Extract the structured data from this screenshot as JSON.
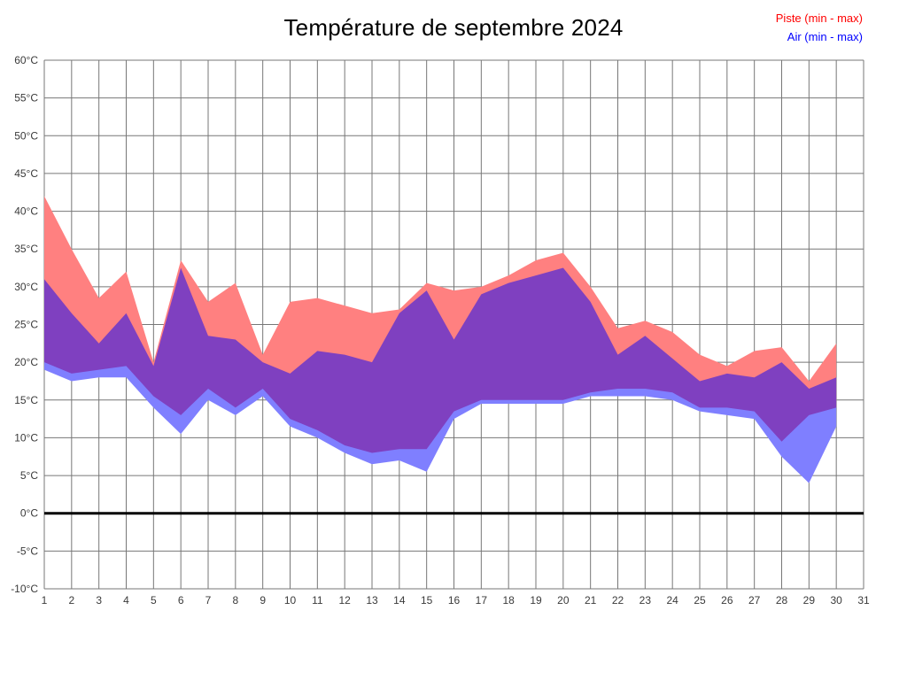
{
  "chart_data": {
    "type": "area",
    "title": "Température de septembre 2024",
    "legend": [
      {
        "label": "Piste (min - max)",
        "color": "#ff0000"
      },
      {
        "label": "Air (min - max)",
        "color": "#0000ff"
      }
    ],
    "xlabel": "",
    "ylabel": "",
    "xlim": [
      1,
      31
    ],
    "ylim": [
      -10,
      60
    ],
    "grid": true,
    "grid_color": "#777777",
    "zero_line_color": "#000000",
    "xtick_values": [
      1,
      2,
      3,
      4,
      5,
      6,
      7,
      8,
      9,
      10,
      11,
      12,
      13,
      14,
      15,
      16,
      17,
      18,
      19,
      20,
      21,
      22,
      23,
      24,
      25,
      26,
      27,
      28,
      29,
      30,
      31
    ],
    "xtick_labels": [
      "1",
      "2",
      "3",
      "4",
      "5",
      "6",
      "7",
      "8",
      "9",
      "10",
      "11",
      "12",
      "13",
      "14",
      "15",
      "16",
      "17",
      "18",
      "19",
      "20",
      "21",
      "22",
      "23",
      "24",
      "25",
      "26",
      "27",
      "28",
      "29",
      "30",
      "31"
    ],
    "ytick_values": [
      60,
      55,
      50,
      45,
      40,
      35,
      30,
      25,
      20,
      15,
      10,
      5,
      0,
      -5,
      -10
    ],
    "ytick_labels": [
      "60°C",
      "55°C",
      "50°C",
      "45°C",
      "40°C",
      "35°C",
      "30°C",
      "25°C",
      "20°C",
      "15°C",
      "10°C",
      "5°C",
      "0°C",
      "-5°C",
      "-10°C"
    ],
    "days": [
      1,
      2,
      3,
      4,
      5,
      6,
      7,
      8,
      9,
      10,
      11,
      12,
      13,
      14,
      15,
      16,
      17,
      18,
      19,
      20,
      21,
      22,
      23,
      24,
      25,
      26,
      27,
      28,
      29,
      30
    ],
    "series": [
      {
        "name": "Piste (min - max)",
        "fill": "#ff8080",
        "fill_opacity": 1,
        "min": [
          20,
          18.5,
          19,
          19.5,
          15.5,
          13,
          16.5,
          14,
          16.5,
          12.5,
          11,
          9,
          8,
          8.5,
          8.5,
          13.5,
          15,
          15,
          15,
          15,
          16,
          16.5,
          16.5,
          16,
          14,
          14,
          13.5,
          9.5,
          13,
          14
        ],
        "max": [
          42,
          35,
          28.5,
          32,
          20,
          33.5,
          28,
          30.5,
          21,
          28,
          28.5,
          27.5,
          26.5,
          27,
          30.5,
          29.5,
          30,
          31.5,
          33.5,
          34.5,
          30,
          24.5,
          25.5,
          24,
          21,
          19.5,
          21.5,
          22,
          17.5,
          22.5
        ]
      },
      {
        "name": "Air (min - max)",
        "fill": "#0000ff",
        "fill_opacity": 0.5,
        "min": [
          19,
          17.5,
          18,
          18,
          14,
          10.5,
          15,
          13,
          15.5,
          11.5,
          10,
          8,
          6.5,
          7,
          5.5,
          12.5,
          14.5,
          14.5,
          14.5,
          14.5,
          15.5,
          15.5,
          15.5,
          15,
          13.5,
          13,
          12.5,
          7.5,
          4,
          11.5
        ],
        "max": [
          31,
          26.5,
          22.5,
          26.5,
          19.5,
          32.5,
          23.5,
          23,
          20,
          18.5,
          21.5,
          21,
          20,
          26.5,
          29.5,
          23,
          29,
          30.5,
          31.5,
          32.5,
          28,
          21,
          23.5,
          20.5,
          17.5,
          18.5,
          18,
          20,
          16.5,
          18
        ]
      }
    ]
  }
}
